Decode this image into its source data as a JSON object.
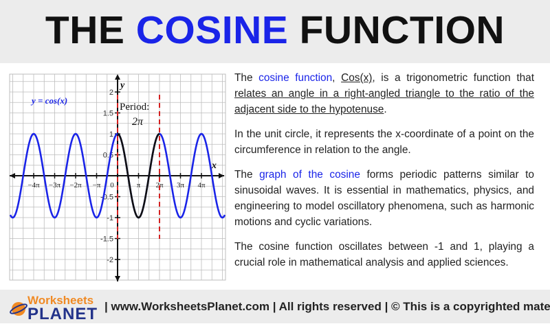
{
  "header": {
    "title_part1": "THE ",
    "title_accent": "COSINE",
    "title_part2": " FUNCTION"
  },
  "graph": {
    "equation_label": "y = cos(x)",
    "period_label": "Period:",
    "period_value": "2π",
    "x_axis_label": "x",
    "y_axis_label": "y",
    "y_ticks": [
      "2",
      "1.5",
      "1",
      "0.5",
      "-0.5",
      "-1",
      "-1.5",
      "-2"
    ],
    "x_ticks": [
      "−4π",
      "−3π",
      "−2π",
      "−π",
      "0",
      "π",
      "2π",
      "3π",
      "4π"
    ],
    "colors": {
      "curve": "#1a24e8",
      "highlight": "#111111",
      "period_lines": "#d42020",
      "grid": "#bdbdbd"
    }
  },
  "paragraphs": {
    "p1": {
      "t1": "The ",
      "t2": "cosine function",
      "t3": ", ",
      "t4": "Cos(x)",
      "t5": ", is a trigonometric function that ",
      "t6": "relates an angle in a right-angled triangle to the ratio of the adjacent side to the hypotenuse",
      "t7": "."
    },
    "p2": "In the unit circle, it represents the x-coordinate of a point on the circumference in relation to the angle.",
    "p3": {
      "t1": "The ",
      "t2": "graph of the cosine",
      "t3": " forms periodic patterns similar to sinusoidal waves. It is essential in mathematics, physics, and engineering to model oscillatory phenomena, such as harmonic motions and cyclic variations."
    },
    "p4": "The cosine function oscillates between -1 and 1, playing a crucial role in mathematical analysis and applied sciences."
  },
  "footer": {
    "logo_top": "Worksheets",
    "logo_bottom": "PLANET",
    "text": "| www.WorksheetsPlanet.com | All rights reserved | © This is a copyrighted material"
  }
}
